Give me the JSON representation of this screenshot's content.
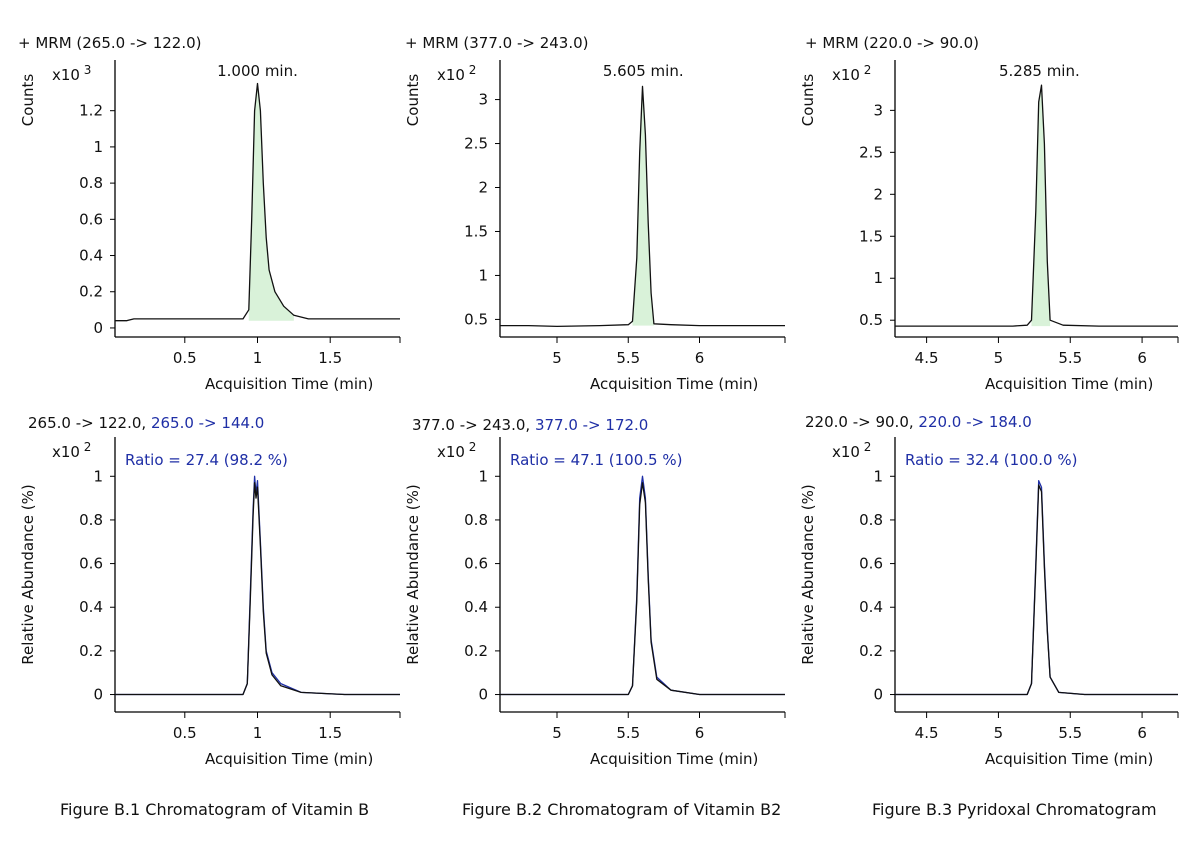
{
  "colors": {
    "axis": "#000000",
    "trace": "#111111",
    "fill": "#d9f2d9",
    "qualifier": "#1f2fa6"
  },
  "chart_data": [
    {
      "type": "line",
      "title": "+ MRM (265.0 -> 122.0)",
      "ylabel": "Counts",
      "multiplier": "x10 3",
      "xlabel": "Acquisition Time (min)",
      "xlim": [
        0.02,
        1.98
      ],
      "ylim": [
        -0.05,
        1.48
      ],
      "xticks": [
        0.5,
        1,
        1.5
      ],
      "xtick_labels": [
        "0.5",
        "1",
        "1.5"
      ],
      "yticks": [
        0,
        0.2,
        0.4,
        0.6,
        0.8,
        1,
        1.2
      ],
      "ytick_labels": [
        "0",
        "0.2",
        "0.4",
        "0.6",
        "0.8",
        "1",
        "1.2"
      ],
      "peak_label": "1.000 min.",
      "peak_label_x": 1.0,
      "series": [
        {
          "x": [
            0.02,
            0.1,
            0.15,
            0.5,
            0.9,
            0.94,
            0.96,
            0.98,
            1.0,
            1.02,
            1.04,
            1.06,
            1.08,
            1.12,
            1.18,
            1.25,
            1.35,
            1.6,
            1.98
          ],
          "y": [
            0.04,
            0.04,
            0.05,
            0.05,
            0.05,
            0.1,
            0.6,
            1.2,
            1.35,
            1.2,
            0.8,
            0.5,
            0.32,
            0.2,
            0.12,
            0.07,
            0.05,
            0.05,
            0.05
          ]
        }
      ],
      "fill_range": [
        0.94,
        1.3
      ]
    },
    {
      "type": "line",
      "title": "+ MRM (377.0 -> 243.0)",
      "ylabel": "Counts",
      "multiplier": "x10 2",
      "xlabel": "Acquisition Time (min)",
      "xlim": [
        4.6,
        6.6
      ],
      "ylim": [
        0.3,
        3.45
      ],
      "xticks": [
        5,
        5.5,
        6
      ],
      "xtick_labels": [
        "5",
        "5.5",
        "6"
      ],
      "yticks": [
        0.5,
        1,
        1.5,
        2,
        2.5,
        3
      ],
      "ytick_labels": [
        "0.5",
        "1",
        "1.5",
        "2",
        "2.5",
        "3"
      ],
      "peak_label": "5.605 min.",
      "peak_label_x": 5.605,
      "series": [
        {
          "x": [
            4.6,
            4.8,
            5.0,
            5.3,
            5.5,
            5.53,
            5.56,
            5.58,
            5.6,
            5.62,
            5.64,
            5.66,
            5.68,
            5.8,
            6.0,
            6.3,
            6.6
          ],
          "y": [
            0.43,
            0.43,
            0.42,
            0.43,
            0.44,
            0.48,
            1.2,
            2.4,
            3.15,
            2.6,
            1.6,
            0.8,
            0.45,
            0.44,
            0.43,
            0.43,
            0.43
          ]
        }
      ],
      "fill_range": [
        5.53,
        5.68
      ]
    },
    {
      "type": "line",
      "title": "+ MRM (220.0 -> 90.0)",
      "ylabel": "Counts",
      "multiplier": "x10 2",
      "xlabel": "Acquisition Time (min)",
      "xlim": [
        4.28,
        6.25
      ],
      "ylim": [
        0.3,
        3.6
      ],
      "xticks": [
        4.5,
        5,
        5.5,
        6
      ],
      "xtick_labels": [
        "4.5",
        "5",
        "5.5",
        "6"
      ],
      "yticks": [
        0.5,
        1,
        1.5,
        2,
        2.5,
        3
      ],
      "ytick_labels": [
        "0.5",
        "1",
        "1.5",
        "2",
        "2.5",
        "3"
      ],
      "peak_label": "5.285 min.",
      "peak_label_x": 5.285,
      "series": [
        {
          "x": [
            4.28,
            4.5,
            4.8,
            5.1,
            5.2,
            5.23,
            5.26,
            5.28,
            5.3,
            5.32,
            5.34,
            5.36,
            5.45,
            5.7,
            6.0,
            6.25
          ],
          "y": [
            0.43,
            0.43,
            0.43,
            0.43,
            0.44,
            0.5,
            1.8,
            3.1,
            3.3,
            2.6,
            1.2,
            0.5,
            0.44,
            0.43,
            0.43,
            0.43
          ]
        }
      ],
      "fill_range": [
        5.23,
        5.38
      ]
    },
    {
      "type": "line",
      "title_parts": [
        "265.0 -> 122.0, ",
        "265.0 -> 144.0"
      ],
      "ylabel": "Relative Abundance (%)",
      "multiplier": "x10 2",
      "ratio_label": "Ratio = 27.4 (98.2 %)",
      "xlabel": "Acquisition Time (min)",
      "xlim": [
        0.02,
        1.98
      ],
      "ylim": [
        -0.08,
        1.18
      ],
      "xticks": [
        0.5,
        1,
        1.5
      ],
      "xtick_labels": [
        "0.5",
        "1",
        "1.5"
      ],
      "yticks": [
        0,
        0.2,
        0.4,
        0.6,
        0.8,
        1
      ],
      "ytick_labels": [
        "0",
        "0.2",
        "0.4",
        "0.6",
        "0.8",
        "1"
      ],
      "series": [
        {
          "x": [
            0.02,
            0.3,
            0.6,
            0.9,
            0.93,
            0.95,
            0.97,
            0.98,
            0.99,
            1.0,
            1.02,
            1.04,
            1.06,
            1.1,
            1.16,
            1.3,
            1.6,
            1.98
          ],
          "y": [
            0.0,
            0.0,
            0.0,
            0.0,
            0.05,
            0.45,
            0.85,
            1.0,
            0.92,
            0.98,
            0.7,
            0.4,
            0.2,
            0.1,
            0.05,
            0.01,
            0.0,
            0.0
          ]
        },
        {
          "x": [
            0.02,
            0.3,
            0.6,
            0.9,
            0.93,
            0.95,
            0.97,
            0.98,
            0.99,
            1.0,
            1.02,
            1.04,
            1.06,
            1.1,
            1.16,
            1.3,
            1.6,
            1.98
          ],
          "y": [
            0.0,
            0.0,
            0.0,
            0.0,
            0.05,
            0.42,
            0.82,
            0.97,
            0.9,
            0.95,
            0.68,
            0.38,
            0.19,
            0.09,
            0.04,
            0.01,
            0.0,
            0.0
          ]
        }
      ]
    },
    {
      "type": "line",
      "title_parts": [
        "377.0 -> 243.0, ",
        "377.0 -> 172.0"
      ],
      "ylabel": "Relative Abundance (%)",
      "multiplier": "x10 2",
      "ratio_label": "Ratio = 47.1 (100.5 %)",
      "xlabel": "Acquisition Time (min)",
      "xlim": [
        4.6,
        6.6
      ],
      "ylim": [
        -0.08,
        1.18
      ],
      "xticks": [
        5,
        5.5,
        6
      ],
      "xtick_labels": [
        "5",
        "5.5",
        "6"
      ],
      "yticks": [
        0,
        0.2,
        0.4,
        0.6,
        0.8,
        1
      ],
      "ytick_labels": [
        "0",
        "0.2",
        "0.4",
        "0.6",
        "0.8",
        "1"
      ],
      "series": [
        {
          "x": [
            4.6,
            4.9,
            5.2,
            5.5,
            5.53,
            5.56,
            5.58,
            5.6,
            5.62,
            5.64,
            5.66,
            5.7,
            5.8,
            6.0,
            6.3,
            6.6
          ],
          "y": [
            0.0,
            0.0,
            0.0,
            0.0,
            0.04,
            0.45,
            0.9,
            1.0,
            0.9,
            0.55,
            0.25,
            0.08,
            0.02,
            0.0,
            0.0,
            0.0
          ]
        },
        {
          "x": [
            4.6,
            4.9,
            5.2,
            5.5,
            5.53,
            5.56,
            5.58,
            5.6,
            5.62,
            5.64,
            5.66,
            5.7,
            5.8,
            6.0,
            6.3,
            6.6
          ],
          "y": [
            0.0,
            0.0,
            0.0,
            0.0,
            0.04,
            0.43,
            0.87,
            0.97,
            0.88,
            0.53,
            0.24,
            0.07,
            0.02,
            0.0,
            0.0,
            0.0
          ]
        }
      ]
    },
    {
      "type": "line",
      "title_parts": [
        "220.0 -> 90.0, ",
        "220.0 -> 184.0"
      ],
      "ylabel": "Relative Abundance (%)",
      "multiplier": "x10 2",
      "ratio_label": "Ratio = 32.4 (100.0 %)",
      "xlabel": "Acquisition Time (min)",
      "xlim": [
        4.28,
        6.25
      ],
      "ylim": [
        -0.08,
        1.18
      ],
      "xticks": [
        4.5,
        5,
        5.5,
        6
      ],
      "xtick_labels": [
        "4.5",
        "5",
        "5.5",
        "6"
      ],
      "yticks": [
        0,
        0.2,
        0.4,
        0.6,
        0.8,
        1
      ],
      "ytick_labels": [
        "0",
        "0.2",
        "0.4",
        "0.6",
        "0.8",
        "1"
      ],
      "series": [
        {
          "x": [
            4.28,
            4.6,
            4.9,
            5.2,
            5.23,
            5.26,
            5.28,
            5.3,
            5.32,
            5.34,
            5.36,
            5.42,
            5.6,
            5.9,
            6.25
          ],
          "y": [
            0.0,
            0.0,
            0.0,
            0.0,
            0.05,
            0.6,
            0.98,
            0.95,
            0.6,
            0.3,
            0.08,
            0.01,
            0.0,
            0.0,
            0.0
          ]
        },
        {
          "x": [
            4.28,
            4.6,
            4.9,
            5.2,
            5.23,
            5.26,
            5.28,
            5.3,
            5.32,
            5.34,
            5.36,
            5.42,
            5.6,
            5.9,
            6.25
          ],
          "y": [
            0.0,
            0.0,
            0.0,
            0.0,
            0.05,
            0.58,
            0.96,
            0.93,
            0.58,
            0.29,
            0.08,
            0.01,
            0.0,
            0.0,
            0.0
          ]
        }
      ]
    }
  ],
  "captions": [
    "Figure B.1 Chromatogram of Vitamin B",
    "Figure B.2 Chromatogram of Vitamin B2",
    "Figure B.3 Pyridoxal Chromatogram"
  ]
}
